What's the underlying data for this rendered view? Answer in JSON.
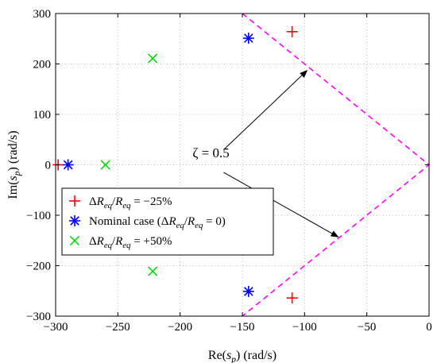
{
  "chart_data": {
    "type": "scatter",
    "title": "",
    "xlabel": "Re(s_p) (rad/s)",
    "ylabel": "Im(s_p) (rad/s)",
    "xlim": [
      -300,
      0
    ],
    "ylim": [
      -300,
      300
    ],
    "xticks": [
      -300,
      -250,
      -200,
      -150,
      -100,
      -50,
      0
    ],
    "yticks": [
      -300,
      -200,
      -100,
      0,
      100,
      200,
      300
    ],
    "grid": "dotted",
    "legend_position": "lower-left",
    "series": [
      {
        "name": "ΔReq/Req = −25%",
        "marker": "plus",
        "color": "#ff0000",
        "points": [
          [
            -298,
            0
          ],
          [
            -110,
            264
          ],
          [
            -110,
            -264
          ]
        ]
      },
      {
        "name": "Nominal case (ΔReq/Req = 0)",
        "marker": "asterisk",
        "color": "#0000ff",
        "points": [
          [
            -290,
            0
          ],
          [
            -145,
            251
          ],
          [
            -145,
            -251
          ]
        ]
      },
      {
        "name": "ΔReq/Req = +50%",
        "marker": "x",
        "color": "#00dd00",
        "points": [
          [
            -260,
            0
          ],
          [
            -222,
            211
          ],
          [
            -222,
            -211
          ]
        ]
      }
    ],
    "damping_lines": {
      "color": "#ff00ff",
      "style": "dashed",
      "points": [
        [
          -150,
          300
        ],
        [
          0,
          0
        ],
        [
          -150,
          -300
        ]
      ]
    },
    "annotation": {
      "text": "ζ = 0.5",
      "text_at": [
        -190,
        15
      ],
      "arrows": [
        {
          "from": [
            -165,
            30
          ],
          "to": [
            -98,
            187
          ]
        },
        {
          "from": [
            -165,
            -15
          ],
          "to": [
            -73,
            -143
          ]
        }
      ]
    }
  }
}
